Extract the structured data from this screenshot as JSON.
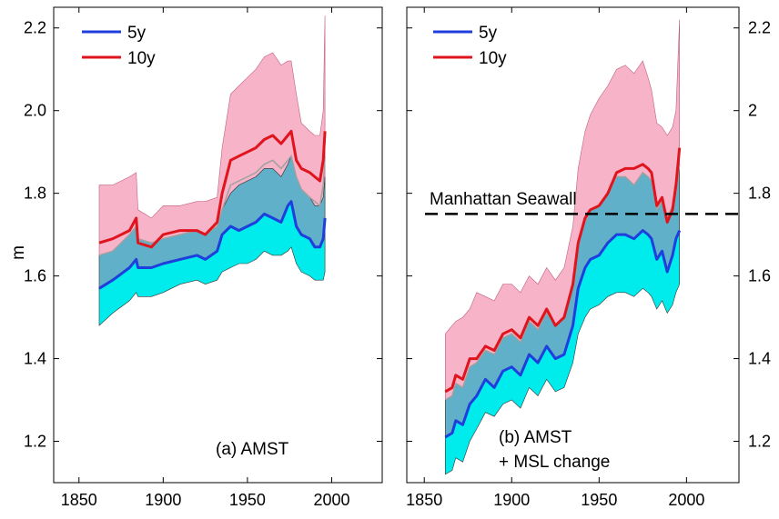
{
  "chart_data": [
    {
      "type": "area",
      "panel_label": "(a) AMST",
      "ylabel": "m",
      "xlim": [
        1835,
        2030
      ],
      "ylim": [
        1.1,
        2.25
      ],
      "xticks": [
        1850,
        1900,
        1950,
        2000
      ],
      "yticks": [
        1.2,
        1.4,
        1.6,
        1.8,
        2.0,
        2.2
      ],
      "ytick_labels": [
        "1.2",
        "1.4",
        "1.6",
        "1.8",
        "2.0",
        "2.2"
      ],
      "legend": {
        "position": "top-left",
        "entries": [
          "5y",
          "10y"
        ]
      },
      "colors": {
        "5y": "#1f3fdc",
        "10y": "#e0141c",
        "band_10y": "#f7b3c8",
        "band_5y_upper": "#5fb0c8",
        "band_5y_lower": "#00ecec"
      },
      "series": [
        {
          "name": "10y",
          "x": [
            1862,
            1870,
            1880,
            1884,
            1885,
            1893,
            1900,
            1910,
            1920,
            1925,
            1932,
            1935,
            1940,
            1945,
            1950,
            1955,
            1960,
            1965,
            1970,
            1974,
            1976,
            1979,
            1982,
            1987,
            1990,
            1993,
            1995,
            1996
          ],
          "y": [
            1.68,
            1.69,
            1.71,
            1.74,
            1.68,
            1.67,
            1.7,
            1.71,
            1.71,
            1.7,
            1.73,
            1.8,
            1.88,
            1.89,
            1.9,
            1.91,
            1.93,
            1.94,
            1.92,
            1.94,
            1.95,
            1.88,
            1.86,
            1.85,
            1.84,
            1.83,
            1.88,
            1.95
          ],
          "upper": [
            1.82,
            1.82,
            1.84,
            1.85,
            1.76,
            1.74,
            1.77,
            1.77,
            1.78,
            1.78,
            1.79,
            1.91,
            2.04,
            2.06,
            2.08,
            2.1,
            2.13,
            2.14,
            2.11,
            2.12,
            2.12,
            2.04,
            1.97,
            1.95,
            1.94,
            1.94,
            2.0,
            2.23
          ]
        },
        {
          "name": "5y",
          "x": [
            1862,
            1870,
            1880,
            1884,
            1885,
            1893,
            1900,
            1910,
            1920,
            1925,
            1932,
            1935,
            1940,
            1945,
            1950,
            1955,
            1960,
            1965,
            1970,
            1974,
            1976,
            1979,
            1982,
            1987,
            1990,
            1993,
            1995,
            1996
          ],
          "y": [
            1.57,
            1.59,
            1.62,
            1.64,
            1.62,
            1.62,
            1.63,
            1.64,
            1.65,
            1.64,
            1.66,
            1.7,
            1.72,
            1.71,
            1.72,
            1.73,
            1.75,
            1.74,
            1.73,
            1.77,
            1.78,
            1.72,
            1.7,
            1.69,
            1.67,
            1.67,
            1.69,
            1.74
          ],
          "upper": [
            1.65,
            1.66,
            1.7,
            1.72,
            1.69,
            1.68,
            1.69,
            1.7,
            1.71,
            1.7,
            1.72,
            1.76,
            1.8,
            1.82,
            1.83,
            1.84,
            1.86,
            1.86,
            1.84,
            1.87,
            1.89,
            1.84,
            1.81,
            1.79,
            1.77,
            1.77,
            1.79,
            1.84
          ],
          "lower": [
            1.48,
            1.51,
            1.54,
            1.56,
            1.55,
            1.55,
            1.56,
            1.58,
            1.59,
            1.58,
            1.59,
            1.61,
            1.62,
            1.63,
            1.63,
            1.64,
            1.66,
            1.65,
            1.65,
            1.66,
            1.67,
            1.63,
            1.61,
            1.6,
            1.59,
            1.59,
            1.59,
            1.61
          ]
        }
      ]
    },
    {
      "type": "area",
      "panel_label_lines": [
        "(b) AMST",
        "+ MSL change"
      ],
      "annotation": "Manhattan Seawall",
      "hline": 1.75,
      "xlim": [
        1840,
        2030
      ],
      "ylim": [
        1.1,
        2.25
      ],
      "xticks": [
        1850,
        1900,
        1950,
        2000
      ],
      "yticks": [
        1.2,
        1.4,
        1.6,
        1.8,
        2.0,
        2.2
      ],
      "ytick_labels": [
        "1.2",
        "1.4",
        "1.6",
        "1.8",
        "2",
        "2.2"
      ],
      "legend": {
        "position": "top-left",
        "entries": [
          "5y",
          "10y"
        ]
      },
      "series": [
        {
          "name": "10y",
          "x": [
            1862,
            1866,
            1868,
            1872,
            1876,
            1880,
            1885,
            1890,
            1895,
            1900,
            1905,
            1910,
            1915,
            1920,
            1925,
            1930,
            1935,
            1938,
            1942,
            1945,
            1950,
            1955,
            1960,
            1965,
            1970,
            1975,
            1978,
            1980,
            1983,
            1986,
            1989,
            1992,
            1994,
            1996
          ],
          "y": [
            1.32,
            1.33,
            1.36,
            1.35,
            1.4,
            1.4,
            1.43,
            1.42,
            1.46,
            1.47,
            1.45,
            1.5,
            1.48,
            1.52,
            1.48,
            1.5,
            1.58,
            1.68,
            1.74,
            1.76,
            1.77,
            1.8,
            1.85,
            1.86,
            1.86,
            1.87,
            1.86,
            1.85,
            1.77,
            1.79,
            1.73,
            1.76,
            1.82,
            1.91
          ],
          "upper": [
            1.46,
            1.48,
            1.49,
            1.5,
            1.52,
            1.56,
            1.55,
            1.54,
            1.58,
            1.58,
            1.56,
            1.6,
            1.58,
            1.62,
            1.59,
            1.62,
            1.72,
            1.86,
            1.95,
            1.99,
            2.03,
            2.06,
            2.1,
            2.11,
            2.09,
            2.12,
            2.08,
            2.05,
            1.97,
            1.96,
            1.94,
            1.96,
            2.0,
            2.22
          ]
        },
        {
          "name": "5y",
          "x": [
            1862,
            1866,
            1868,
            1872,
            1876,
            1880,
            1885,
            1890,
            1895,
            1900,
            1905,
            1910,
            1915,
            1920,
            1925,
            1930,
            1935,
            1938,
            1942,
            1945,
            1950,
            1955,
            1960,
            1965,
            1970,
            1975,
            1978,
            1980,
            1983,
            1986,
            1989,
            1992,
            1994,
            1996
          ],
          "y": [
            1.21,
            1.22,
            1.25,
            1.24,
            1.29,
            1.31,
            1.35,
            1.33,
            1.37,
            1.38,
            1.36,
            1.41,
            1.39,
            1.43,
            1.4,
            1.41,
            1.48,
            1.57,
            1.62,
            1.64,
            1.65,
            1.68,
            1.7,
            1.7,
            1.69,
            1.71,
            1.7,
            1.69,
            1.64,
            1.66,
            1.61,
            1.65,
            1.69,
            1.71
          ],
          "upper": [
            1.3,
            1.31,
            1.34,
            1.33,
            1.38,
            1.39,
            1.42,
            1.41,
            1.45,
            1.46,
            1.44,
            1.49,
            1.47,
            1.51,
            1.48,
            1.5,
            1.58,
            1.68,
            1.73,
            1.76,
            1.77,
            1.8,
            1.84,
            1.84,
            1.82,
            1.85,
            1.84,
            1.83,
            1.76,
            1.78,
            1.74,
            1.77,
            1.8,
            1.87
          ],
          "lower": [
            1.12,
            1.13,
            1.16,
            1.15,
            1.2,
            1.23,
            1.27,
            1.26,
            1.29,
            1.3,
            1.28,
            1.33,
            1.31,
            1.35,
            1.32,
            1.33,
            1.39,
            1.46,
            1.5,
            1.52,
            1.53,
            1.55,
            1.56,
            1.56,
            1.55,
            1.57,
            1.56,
            1.55,
            1.52,
            1.54,
            1.51,
            1.53,
            1.56,
            1.58
          ]
        }
      ]
    }
  ]
}
